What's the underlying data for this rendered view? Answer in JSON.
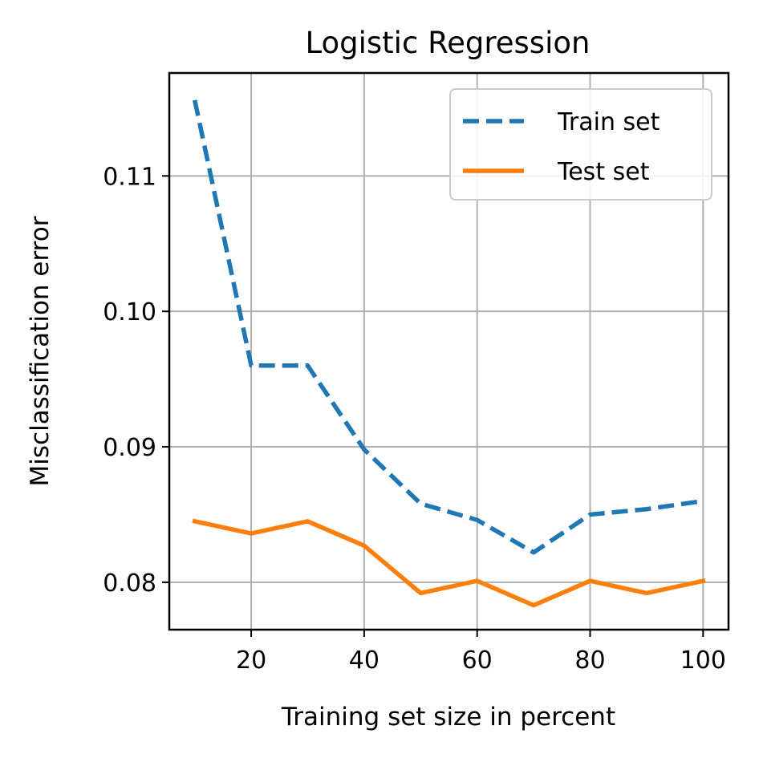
{
  "chart_data": {
    "type": "line",
    "title": "Logistic Regression",
    "xlabel": "Training set size in percent",
    "ylabel": "Misclassification error",
    "xlim": [
      5.5,
      104.5
    ],
    "ylim": [
      0.0765,
      0.1176
    ],
    "xticks": [
      20,
      40,
      60,
      80,
      100
    ],
    "yticks": [
      0.08,
      0.09,
      0.1,
      0.11
    ],
    "xtick_labels": [
      "20",
      "40",
      "60",
      "80",
      "100"
    ],
    "ytick_labels": [
      "0.08",
      "0.09",
      "0.10",
      "0.11"
    ],
    "grid": true,
    "legend_position": "top-right",
    "x": [
      10,
      20,
      30,
      40,
      50,
      60,
      70,
      80,
      90,
      100
    ],
    "series": [
      {
        "name": "Train set",
        "style": "dashed",
        "color": "#1f77b4",
        "values": [
          0.1156,
          0.096,
          0.096,
          0.0898,
          0.0858,
          0.0846,
          0.0822,
          0.085,
          0.0854,
          0.086
        ]
      },
      {
        "name": "Test set",
        "style": "solid",
        "color": "#ff7f0e",
        "values": [
          0.0845,
          0.0836,
          0.0845,
          0.0827,
          0.0792,
          0.0801,
          0.0783,
          0.0801,
          0.0792,
          0.0801
        ]
      }
    ]
  }
}
